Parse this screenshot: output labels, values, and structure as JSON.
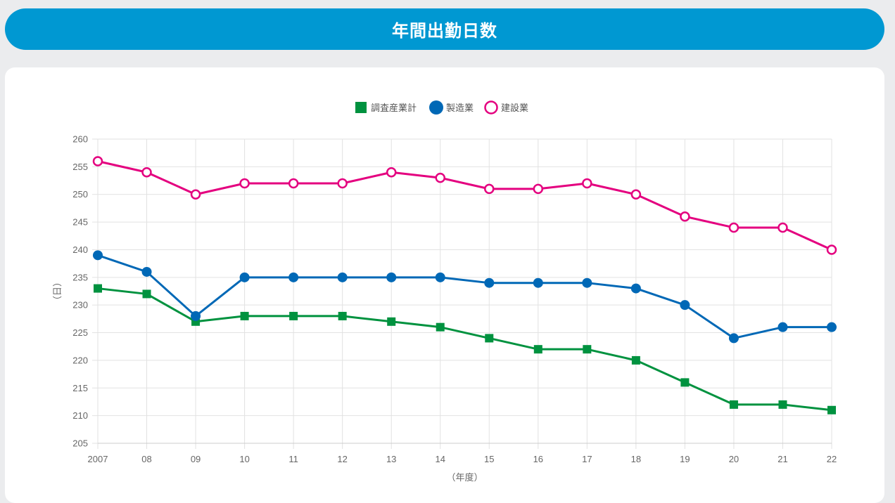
{
  "header": {
    "title": "年間出勤日数"
  },
  "chart_data": {
    "type": "line",
    "categories": [
      "2007",
      "08",
      "09",
      "10",
      "11",
      "12",
      "13",
      "14",
      "15",
      "16",
      "17",
      "18",
      "19",
      "20",
      "21",
      "22"
    ],
    "series": [
      {
        "name": "調査産業計",
        "color": "#00923f",
        "marker": "square-filled",
        "values": [
          233,
          232,
          227,
          228,
          228,
          228,
          227,
          226,
          224,
          222,
          222,
          220,
          216,
          212,
          212,
          211
        ]
      },
      {
        "name": "製造業",
        "color": "#0068b6",
        "marker": "circle-filled",
        "values": [
          239,
          236,
          228,
          235,
          235,
          235,
          235,
          235,
          234,
          234,
          234,
          233,
          230,
          224,
          226,
          226
        ]
      },
      {
        "name": "建設業",
        "color": "#e4007f",
        "marker": "circle-hollow",
        "values": [
          256,
          254,
          250,
          252,
          252,
          252,
          254,
          253,
          251,
          251,
          252,
          250,
          246,
          244,
          244,
          240
        ]
      }
    ],
    "xlabel": "（年度）",
    "ylabel": "（日）",
    "ylim": [
      205,
      260
    ],
    "yticks": [
      260,
      255,
      250,
      245,
      240,
      235,
      230,
      225,
      220,
      215,
      210,
      205
    ],
    "grid": true,
    "legend": "top-center"
  }
}
